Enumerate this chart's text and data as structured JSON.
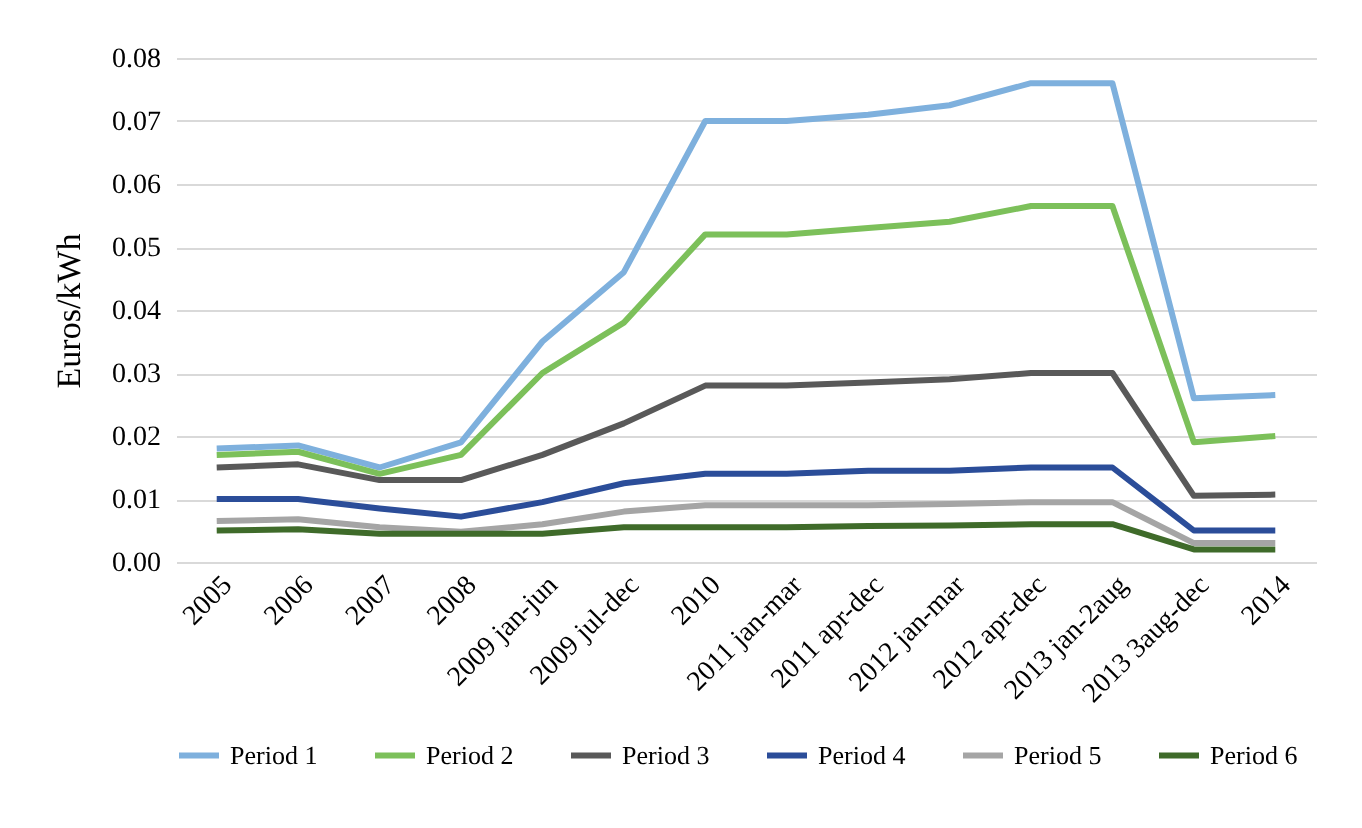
{
  "chart_data": {
    "type": "line",
    "ylabel": "Euros/kWh",
    "categories": [
      "2005",
      "2006",
      "2007",
      "2008",
      "2009 jan-jun",
      "2009 jul-dec",
      "2010",
      "2011 jan-mar",
      "2011 apr-dec",
      "2012 jan-mar",
      "2012 apr-dec",
      "2013 jan-2aug",
      "2013 3aug-dec",
      "2014"
    ],
    "series": [
      {
        "name": "Period 1",
        "color": "#7eb0dd",
        "values": [
          0.018,
          0.0185,
          0.015,
          0.019,
          0.035,
          0.046,
          0.07,
          0.07,
          0.071,
          0.0725,
          0.076,
          0.076,
          0.026,
          0.0265
        ]
      },
      {
        "name": "Period 2",
        "color": "#7cc05a",
        "values": [
          0.017,
          0.0175,
          0.014,
          0.017,
          0.03,
          0.038,
          0.052,
          0.052,
          0.053,
          0.054,
          0.0565,
          0.0565,
          0.019,
          0.02
        ]
      },
      {
        "name": "Period 3",
        "color": "#595959",
        "values": [
          0.015,
          0.0155,
          0.013,
          0.013,
          0.017,
          0.022,
          0.028,
          0.028,
          0.0285,
          0.029,
          0.03,
          0.03,
          0.0105,
          0.0107
        ]
      },
      {
        "name": "Period 4",
        "color": "#2b4d99",
        "values": [
          0.01,
          0.01,
          0.0085,
          0.0072,
          0.0095,
          0.0125,
          0.014,
          0.014,
          0.0145,
          0.0145,
          0.015,
          0.015,
          0.005,
          0.005
        ]
      },
      {
        "name": "Period 5",
        "color": "#a5a5a5",
        "values": [
          0.0065,
          0.0068,
          0.0055,
          0.0048,
          0.006,
          0.008,
          0.009,
          0.009,
          0.009,
          0.0092,
          0.0095,
          0.0095,
          0.003,
          0.003
        ]
      },
      {
        "name": "Period 6",
        "color": "#3f6b2a",
        "values": [
          0.005,
          0.0052,
          0.0045,
          0.0045,
          0.0045,
          0.0055,
          0.0055,
          0.0055,
          0.0057,
          0.0058,
          0.006,
          0.006,
          0.002,
          0.002
        ]
      }
    ],
    "ylim": [
      0,
      0.08
    ],
    "yticks": [
      {
        "value": 0,
        "label": "0.00"
      },
      0.01,
      0.02,
      0.03,
      0.04,
      0.05,
      0.06,
      0.07,
      0.08
    ],
    "grid": "y",
    "legend": "bottom",
    "marker": "none",
    "line_style": "solid"
  }
}
